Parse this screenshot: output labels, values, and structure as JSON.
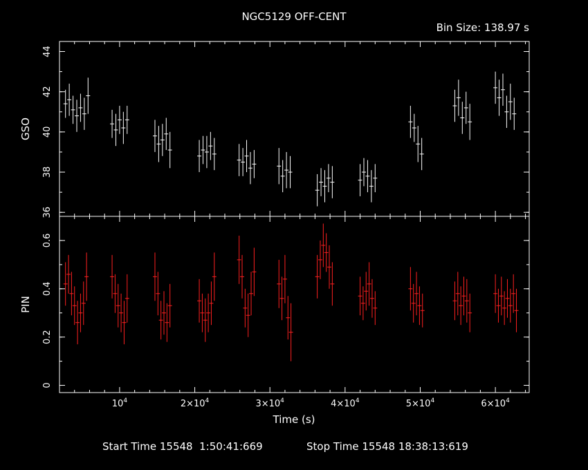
{
  "title": "NGC5129 OFF-CENT",
  "bin_size_label": "Bin Size: 138.97 s",
  "footer": {
    "start_label": "Start Time 15548  1:50:41:669",
    "stop_label": "Stop Time 15548 18:38:13:619"
  },
  "chart_data": [
    {
      "type": "scatter",
      "ylabel": "GSO",
      "xlabel": "",
      "xlim": [
        2000,
        64500
      ],
      "ylim": [
        35.8,
        44.5
      ],
      "yticks": [
        36,
        38,
        40,
        42,
        44
      ],
      "color": "#ffffff",
      "errorbars": true,
      "series": [
        {
          "x": [
            2800,
            3300,
            3800,
            4300,
            4800,
            5300,
            5800,
            9000,
            9500,
            10000,
            10500,
            11000,
            14700,
            15200,
            15700,
            16200,
            16700,
            20600,
            21100,
            21600,
            22100,
            22600,
            25900,
            26400,
            26900,
            27400,
            27900,
            31200,
            31700,
            32200,
            32700,
            36300,
            36800,
            37300,
            37800,
            38300,
            42000,
            42500,
            43000,
            43500,
            44000,
            48700,
            49200,
            49700,
            50200,
            54600,
            55100,
            55600,
            56100,
            56600,
            60000,
            60500,
            61000,
            61500,
            62000,
            62500
          ],
          "y": [
            41.4,
            41.6,
            41.1,
            40.8,
            41.2,
            40.9,
            41.8,
            40.4,
            40.1,
            40.6,
            40.2,
            40.6,
            39.8,
            39.4,
            39.6,
            39.9,
            39.1,
            38.8,
            39.1,
            39.0,
            39.3,
            38.9,
            38.6,
            38.5,
            38.8,
            38.2,
            38.4,
            38.3,
            37.8,
            38.1,
            38.0,
            37.1,
            37.5,
            37.3,
            37.7,
            37.5,
            37.6,
            38.0,
            37.8,
            37.3,
            37.7,
            40.5,
            40.2,
            39.4,
            38.9,
            41.3,
            41.7,
            40.7,
            41.2,
            40.5,
            42.2,
            41.7,
            42.1,
            41.0,
            41.5,
            40.9
          ],
          "err": [
            0.7,
            0.8,
            0.7,
            0.8,
            0.7,
            0.8,
            0.9,
            0.7,
            0.8,
            0.7,
            0.8,
            0.7,
            0.8,
            0.9,
            0.8,
            0.8,
            0.9,
            0.8,
            0.7,
            0.8,
            0.7,
            0.8,
            0.8,
            0.7,
            0.8,
            0.8,
            0.7,
            0.9,
            0.8,
            0.9,
            0.8,
            0.8,
            0.7,
            0.8,
            0.7,
            0.8,
            0.8,
            0.7,
            0.8,
            0.8,
            0.7,
            0.8,
            0.7,
            0.9,
            0.8,
            0.8,
            0.9,
            0.8,
            0.8,
            0.9,
            0.8,
            0.9,
            0.8,
            0.8,
            0.9,
            0.8
          ]
        }
      ]
    },
    {
      "type": "scatter",
      "ylabel": "PIN",
      "xlabel": "Time (s)",
      "xlim": [
        2000,
        64500
      ],
      "ylim": [
        -0.03,
        0.7
      ],
      "yticks": [
        0,
        0.2,
        0.4,
        0.6
      ],
      "xticks": [
        10000,
        20000,
        30000,
        40000,
        50000,
        60000
      ],
      "xticklabels": [
        "10",
        "2×10",
        "3×10",
        "4×10",
        "5×10",
        "6×10"
      ],
      "xtick_exponent": "4",
      "color": "#ff2020",
      "errorbars": true,
      "series": [
        {
          "x": [
            2800,
            3200,
            3600,
            4000,
            4400,
            4800,
            5200,
            5600,
            9000,
            9400,
            9800,
            10200,
            10600,
            11000,
            14700,
            15100,
            15500,
            15900,
            16300,
            16700,
            20600,
            21000,
            21400,
            21800,
            22200,
            22600,
            25900,
            26300,
            26700,
            27100,
            27500,
            27900,
            31200,
            31600,
            32000,
            32400,
            32800,
            36300,
            36700,
            37100,
            37500,
            37900,
            38300,
            42000,
            42400,
            42800,
            43200,
            43600,
            44000,
            48700,
            49100,
            49500,
            49900,
            50300,
            54600,
            55000,
            55400,
            55800,
            56200,
            56600,
            60000,
            60400,
            60800,
            61200,
            61600,
            62000,
            62400,
            62800
          ],
          "y": [
            0.42,
            0.46,
            0.38,
            0.33,
            0.26,
            0.3,
            0.34,
            0.45,
            0.45,
            0.38,
            0.33,
            0.3,
            0.26,
            0.36,
            0.45,
            0.38,
            0.27,
            0.3,
            0.26,
            0.33,
            0.35,
            0.3,
            0.27,
            0.3,
            0.34,
            0.45,
            0.52,
            0.45,
            0.32,
            0.29,
            0.38,
            0.47,
            0.42,
            0.36,
            0.44,
            0.28,
            0.22,
            0.45,
            0.52,
            0.58,
            0.55,
            0.49,
            0.42,
            0.37,
            0.34,
            0.39,
            0.42,
            0.36,
            0.32,
            0.4,
            0.34,
            0.38,
            0.33,
            0.31,
            0.35,
            0.38,
            0.33,
            0.37,
            0.35,
            0.3,
            0.38,
            0.33,
            0.37,
            0.32,
            0.36,
            0.33,
            0.38,
            0.31
          ],
          "err": [
            0.09,
            0.08,
            0.09,
            0.08,
            0.09,
            0.08,
            0.09,
            0.1,
            0.09,
            0.08,
            0.09,
            0.08,
            0.09,
            0.1,
            0.1,
            0.09,
            0.08,
            0.09,
            0.08,
            0.09,
            0.09,
            0.08,
            0.09,
            0.08,
            0.09,
            0.1,
            0.1,
            0.09,
            0.08,
            0.09,
            0.09,
            0.1,
            0.1,
            0.09,
            0.1,
            0.09,
            0.12,
            0.09,
            0.08,
            0.09,
            0.08,
            0.09,
            0.09,
            0.08,
            0.07,
            0.08,
            0.09,
            0.08,
            0.07,
            0.09,
            0.08,
            0.09,
            0.08,
            0.07,
            0.08,
            0.09,
            0.08,
            0.08,
            0.09,
            0.08,
            0.08,
            0.07,
            0.08,
            0.07,
            0.08,
            0.07,
            0.08,
            0.09
          ]
        }
      ]
    }
  ]
}
